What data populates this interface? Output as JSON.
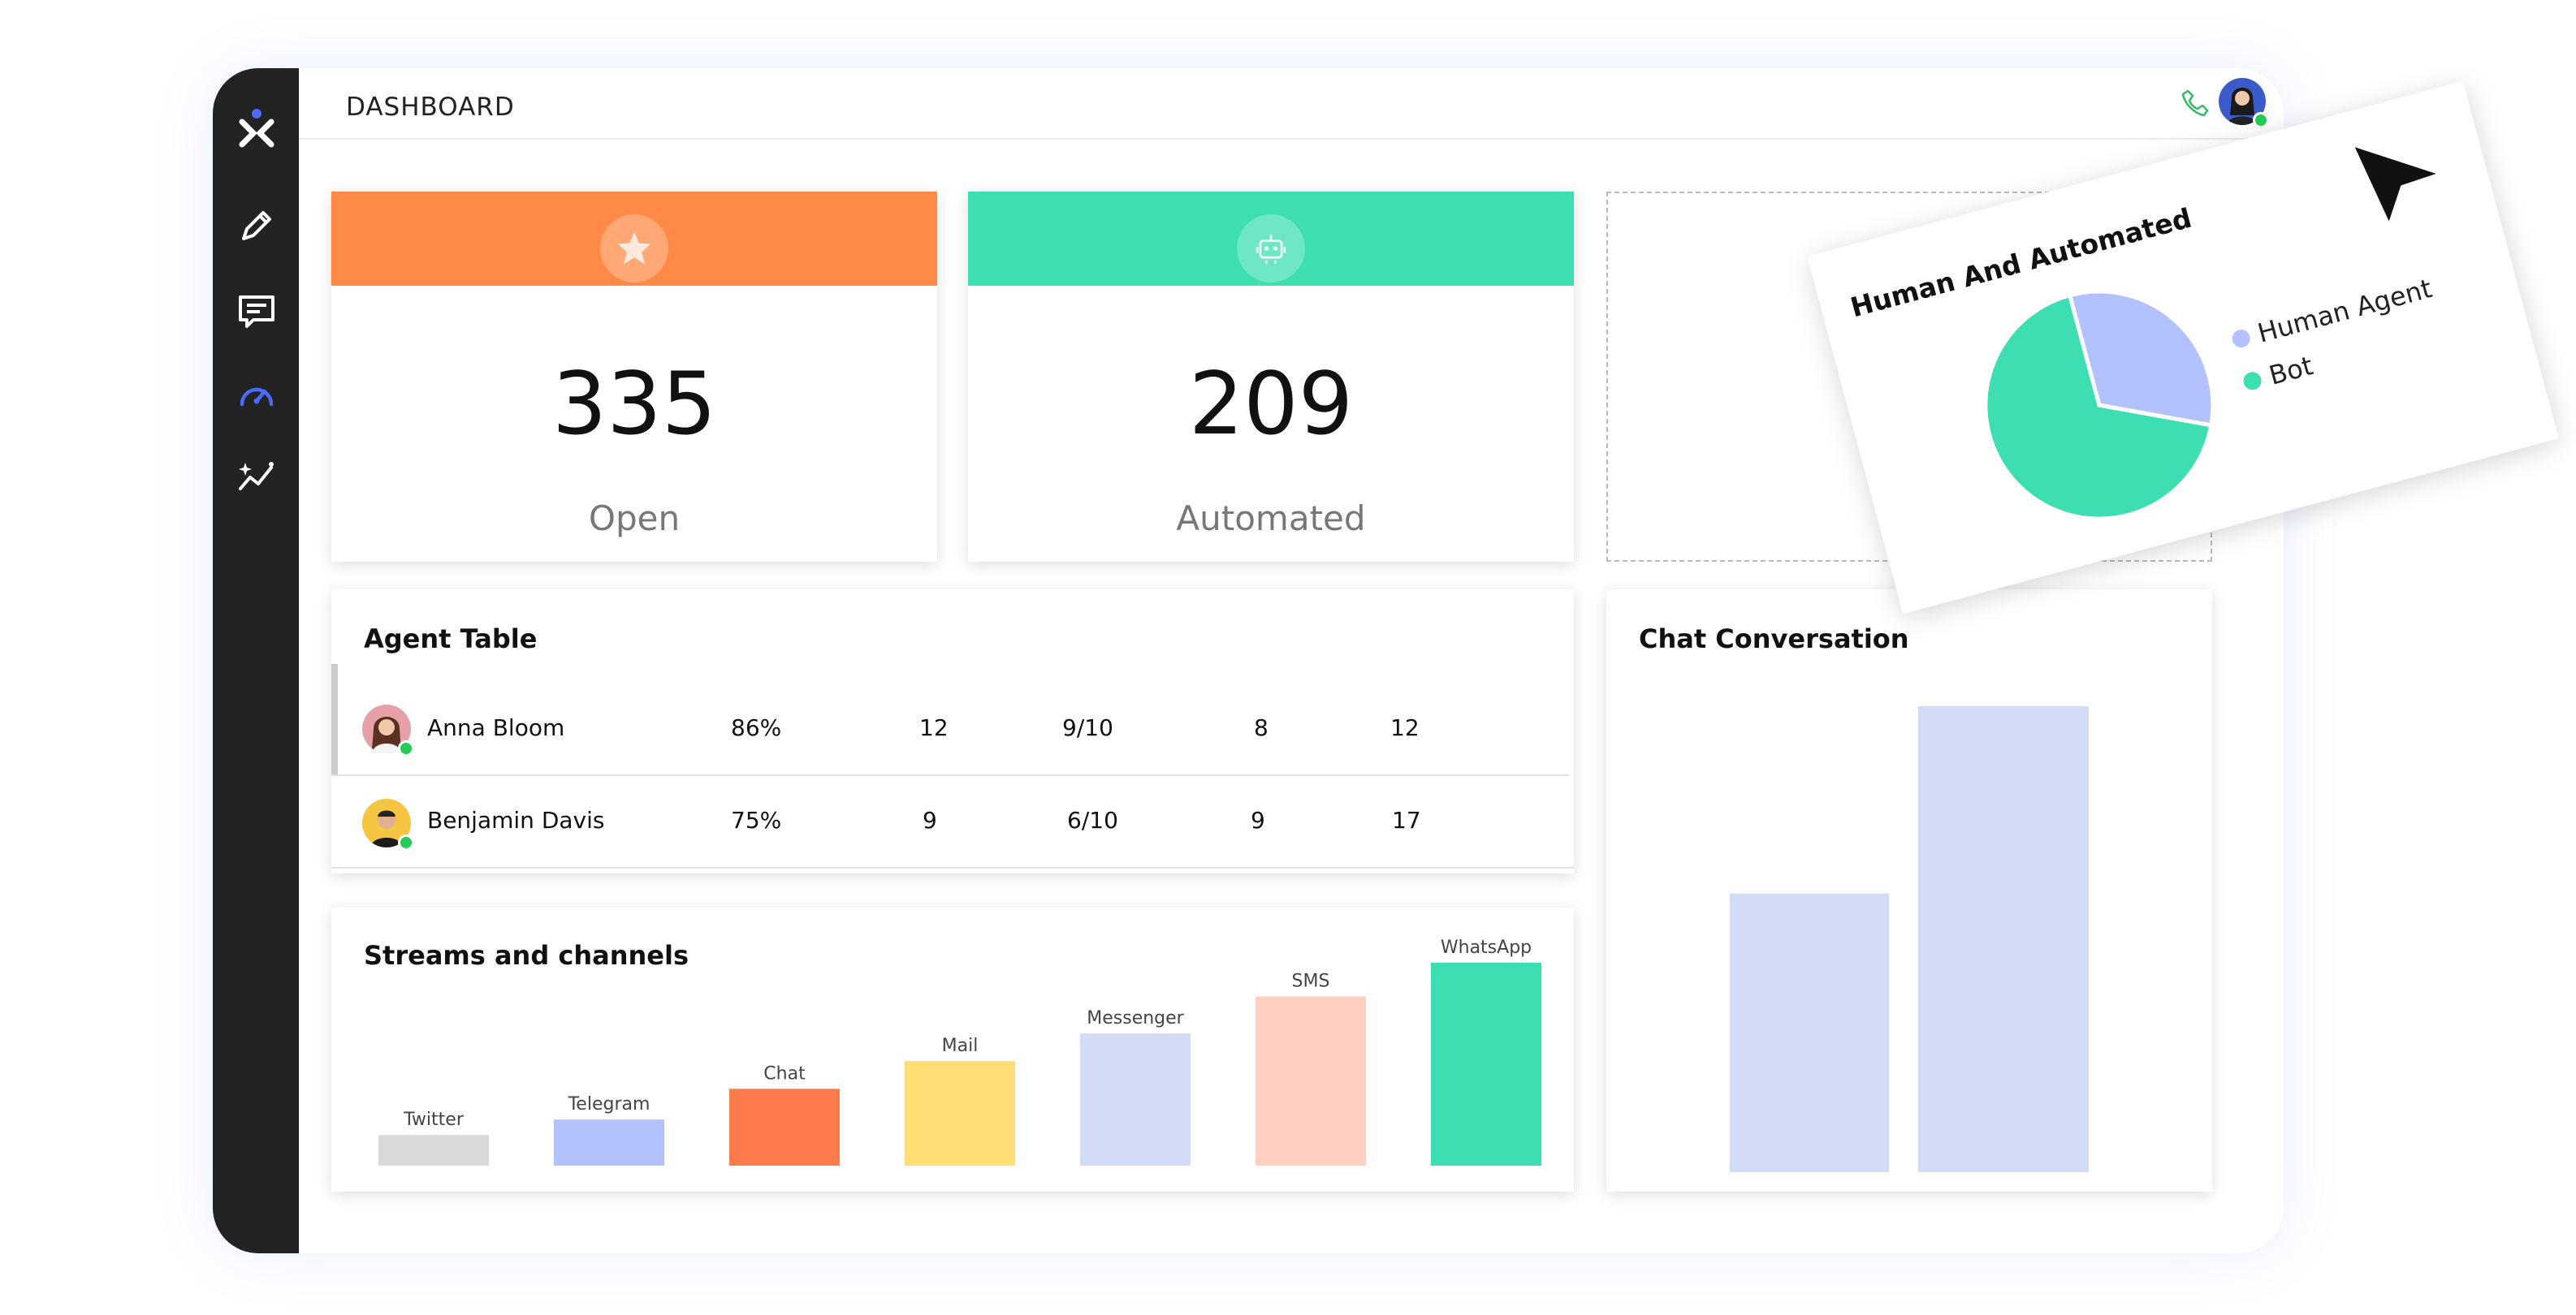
{
  "header": {
    "title": "DASHBOARD"
  },
  "sidebar": {
    "items": [
      {
        "name": "logo",
        "icon": "logo-icon"
      },
      {
        "name": "edit",
        "icon": "pencil-icon"
      },
      {
        "name": "messages",
        "icon": "chat-icon"
      },
      {
        "name": "dashboard",
        "icon": "speedometer-icon",
        "active": true
      },
      {
        "name": "analytics",
        "icon": "analytics-icon"
      }
    ]
  },
  "stats": [
    {
      "value": "335",
      "label": "Open",
      "color": "#ff8a47",
      "icon": "star-icon"
    },
    {
      "value": "209",
      "label": "Automated",
      "color": "#3ddfb2",
      "icon": "robot-icon"
    }
  ],
  "agent_table": {
    "title": "Agent Table",
    "rows": [
      {
        "name": "Anna Bloom",
        "cells": [
          "86%",
          "12",
          "9/10",
          "8",
          "12"
        ]
      },
      {
        "name": "Benjamin Davis",
        "cells": [
          "75%",
          "9",
          "6/10",
          "9",
          "17"
        ]
      }
    ]
  },
  "streams": {
    "title": "Streams and channels",
    "chart_data": {
      "type": "bar",
      "categories": [
        "Twitter",
        "Telegram",
        "Chat",
        "Mail",
        "Messenger",
        "SMS",
        "WhatsApp"
      ],
      "values": [
        10,
        15,
        25,
        34,
        43,
        55,
        66
      ],
      "colors": [
        "#d9d9d9",
        "#b3c2ff",
        "#ff7a4d",
        "#ffde73",
        "#d3dbf6",
        "#ffd0c2",
        "#3ddfb2"
      ]
    }
  },
  "chat_conversation": {
    "title": "Chat Conversation",
    "chart_data": {
      "type": "bar",
      "categories": [
        "",
        ""
      ],
      "values": [
        55,
        92
      ],
      "color": "#d3dbf6"
    }
  },
  "pie": {
    "title": "Human And Automated",
    "chart_data": {
      "type": "pie",
      "labels": [
        "Human Agent",
        "Bot"
      ],
      "values": [
        32,
        68
      ],
      "colors": [
        "#b3c2ff",
        "#3ddfb2"
      ]
    }
  }
}
